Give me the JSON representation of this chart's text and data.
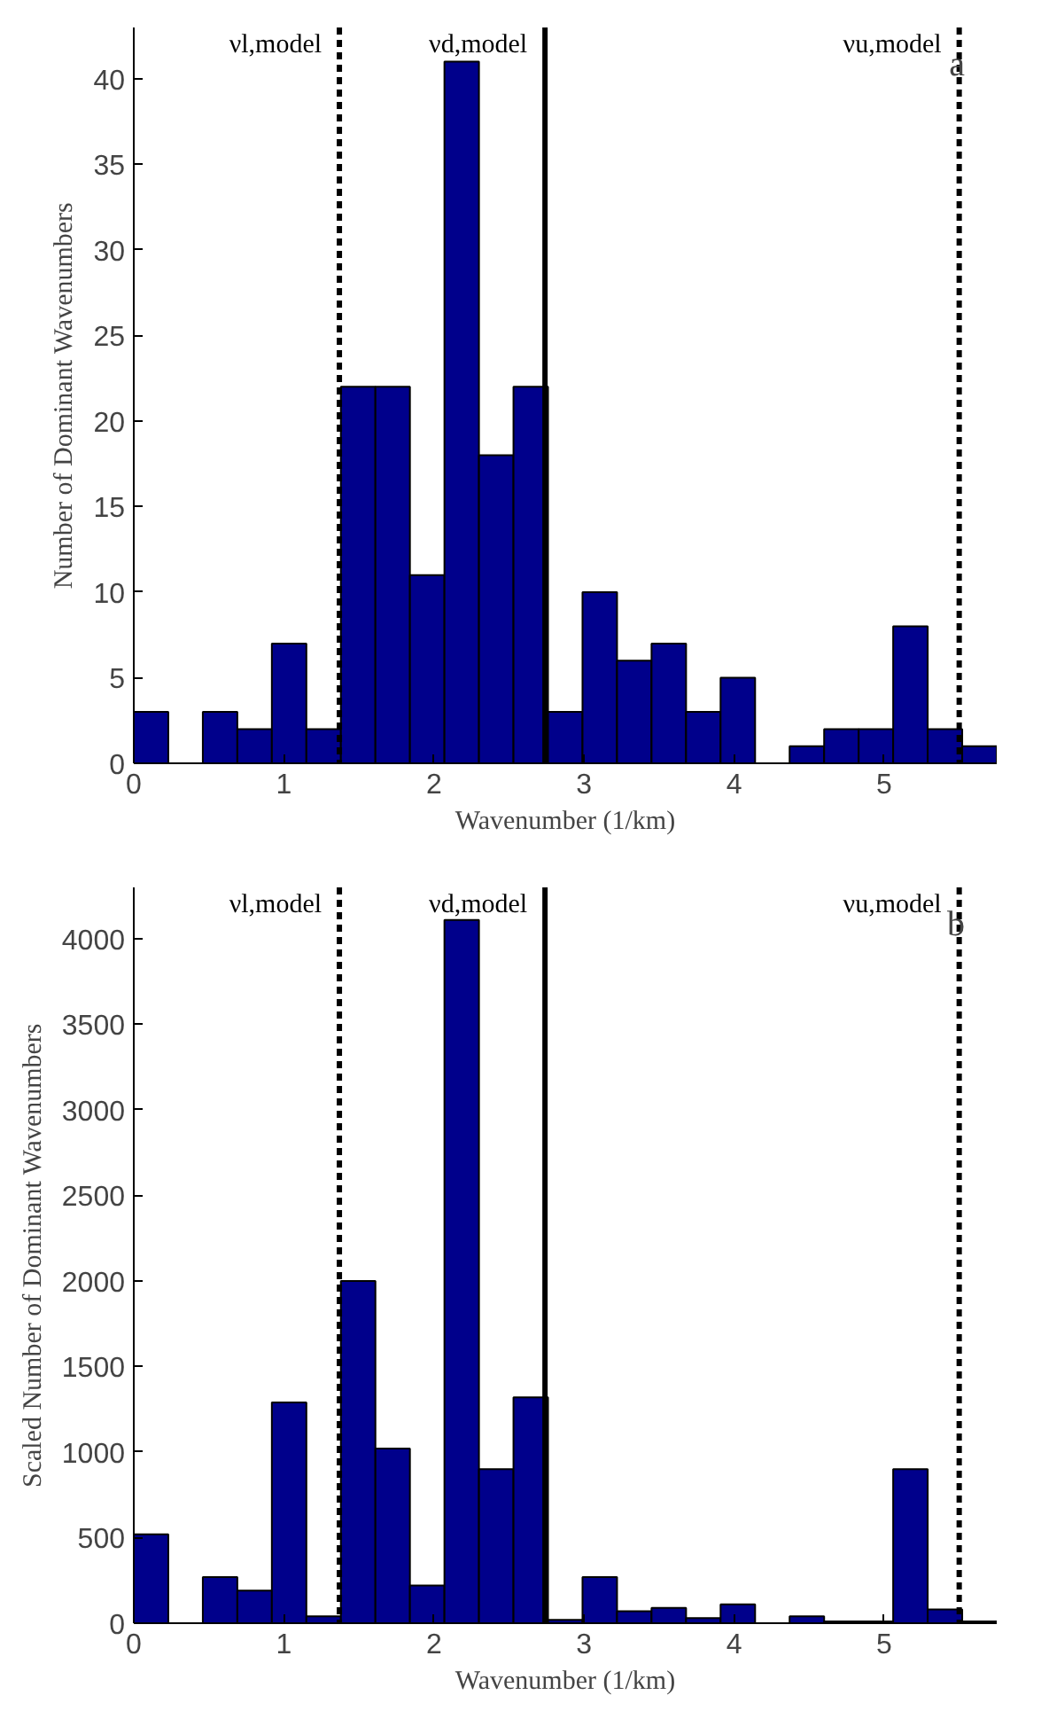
{
  "chart_data": [
    {
      "type": "histogram",
      "title": "a",
      "xlabel": "Wavenumber (1/km)",
      "ylabel": "Number of Dominant Wavenumbers",
      "bins": [
        0,
        0.23,
        0.46,
        0.69,
        0.92,
        1.15,
        1.38,
        1.61,
        1.84,
        2.07,
        2.3,
        2.53,
        2.76,
        2.99,
        3.22,
        3.45,
        3.68,
        3.91,
        4.14,
        4.37,
        4.6,
        4.83,
        5.06,
        5.29,
        5.52,
        5.75
      ],
      "values": [
        3,
        0,
        3,
        2,
        7,
        2,
        22,
        22,
        11,
        41,
        18,
        22,
        3,
        10,
        6,
        7,
        3,
        5,
        0,
        1,
        2,
        2,
        8,
        2,
        1
      ],
      "color": "#00008b",
      "xlim": [
        0,
        5.75
      ],
      "ylim": [
        0,
        43
      ],
      "xticks": [
        0,
        1,
        2,
        3,
        4,
        5
      ],
      "yticks": [
        0,
        5,
        10,
        15,
        20,
        25,
        30,
        35,
        40
      ],
      "grid": false,
      "ref_lines": [
        {
          "axis": "x",
          "value": 1.37,
          "label": "νl,model",
          "line_style": "dashed",
          "color": "#000000"
        },
        {
          "axis": "x",
          "value": 2.74,
          "label": "νd,model",
          "line_style": "solid",
          "color": "#000000"
        },
        {
          "axis": "x",
          "value": 5.5,
          "label": "νu,model",
          "line_style": "dashed",
          "color": "#000000"
        }
      ]
    },
    {
      "type": "histogram",
      "title": "b",
      "xlabel": "Wavenumber (1/km)",
      "ylabel": "Scaled Number of Dominant Wavenumbers",
      "bins": [
        0,
        0.23,
        0.46,
        0.69,
        0.92,
        1.15,
        1.38,
        1.61,
        1.84,
        2.07,
        2.3,
        2.53,
        2.76,
        2.99,
        3.22,
        3.45,
        3.68,
        3.91,
        4.14,
        4.37,
        4.6,
        4.83,
        5.06,
        5.29,
        5.52,
        5.75
      ],
      "values": [
        520,
        0,
        270,
        190,
        1290,
        40,
        2000,
        1020,
        220,
        4110,
        900,
        1320,
        20,
        270,
        70,
        90,
        30,
        110,
        0,
        40,
        10,
        10,
        900,
        80,
        10
      ],
      "color": "#00008b",
      "xlim": [
        0,
        5.75
      ],
      "ylim": [
        0,
        4300
      ],
      "xticks": [
        0,
        1,
        2,
        3,
        4,
        5
      ],
      "yticks": [
        0,
        500,
        1000,
        1500,
        2000,
        2500,
        3000,
        3500,
        4000
      ],
      "grid": false,
      "ref_lines": [
        {
          "axis": "x",
          "value": 1.37,
          "label": "νl,model",
          "line_style": "dashed",
          "color": "#000000"
        },
        {
          "axis": "x",
          "value": 2.74,
          "label": "νd,model",
          "line_style": "solid",
          "color": "#000000"
        },
        {
          "axis": "x",
          "value": 5.5,
          "label": "νu,model",
          "line_style": "dashed",
          "color": "#000000"
        }
      ]
    }
  ]
}
